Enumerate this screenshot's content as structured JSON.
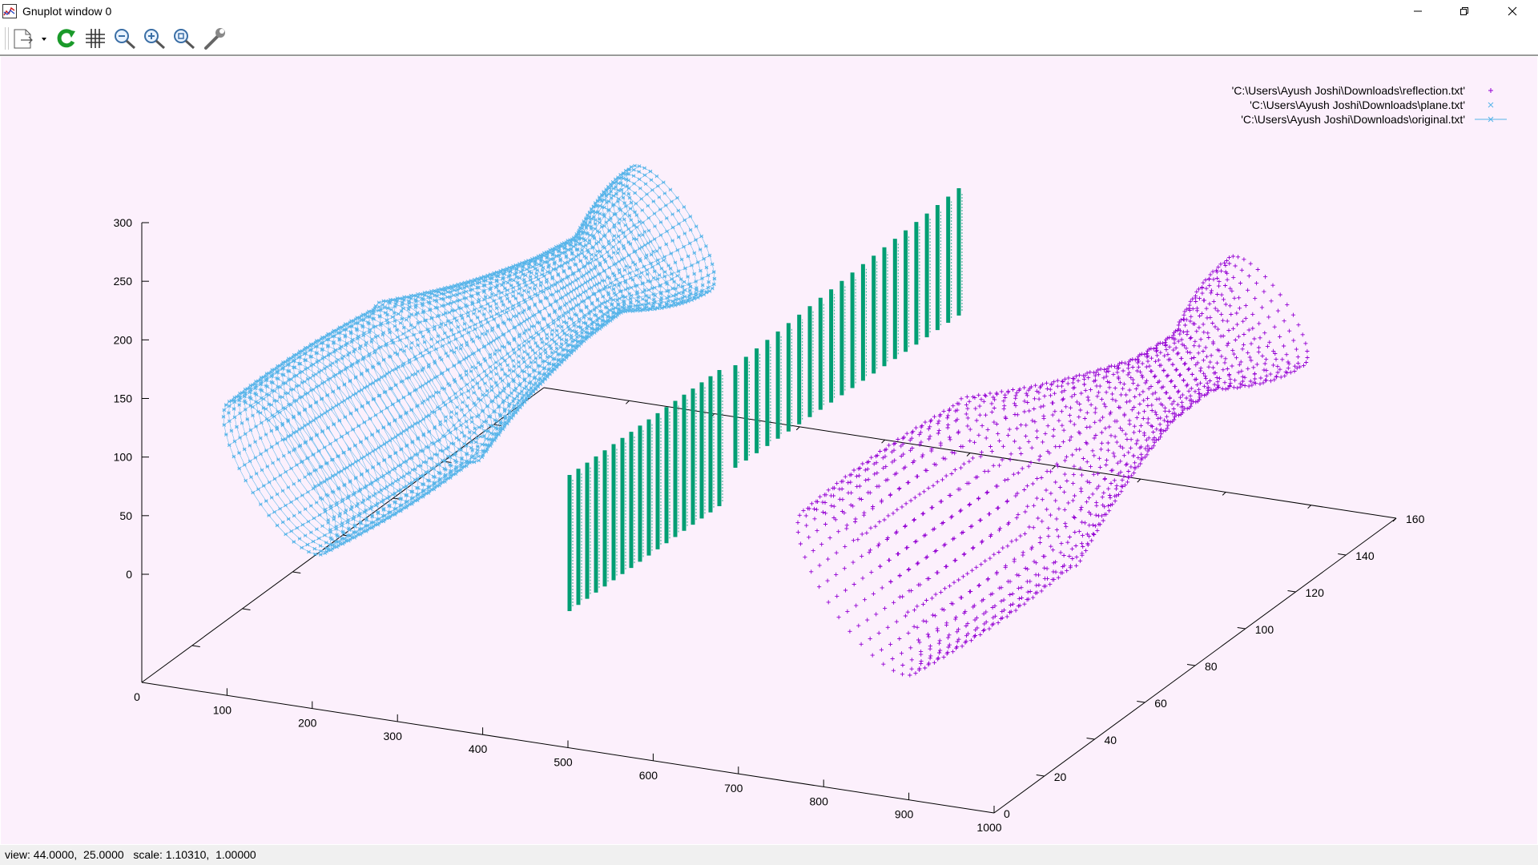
{
  "window": {
    "title": "Gnuplot window 0",
    "controls": [
      "minimize",
      "restore",
      "close"
    ]
  },
  "toolbar": {
    "buttons": [
      "export-menu",
      "replot",
      "grid",
      "zoom-previous",
      "zoom-next",
      "autoscale",
      "options"
    ]
  },
  "colors": {
    "plot_background": "#fcf0fc",
    "original": "#56b4e9",
    "plane": "#009e73",
    "reflection": "#9400d3",
    "axes": "#000000",
    "replot_icon": "#1a9a2a"
  },
  "legend": {
    "entries": [
      {
        "label": "'C:\\Users\\Ayush Joshi\\Downloads\\reflection.txt'",
        "marker": "+",
        "color": "#9400d3"
      },
      {
        "label": "'C:\\Users\\Ayush Joshi\\Downloads\\plane.txt'",
        "marker": "x",
        "color": "#56b4e9"
      },
      {
        "label": "'C:\\Users\\Ayush Joshi\\Downloads\\original.txt'",
        "marker": "line-star",
        "color": "#56b4e9"
      }
    ]
  },
  "chart_data": {
    "type": "scatter",
    "view": "3d",
    "x_ticks": [
      "0",
      "100",
      "200",
      "300",
      "400",
      "500",
      "600",
      "700",
      "800",
      "900",
      "1000"
    ],
    "y_ticks": [
      "0",
      "20",
      "40",
      "60",
      "80",
      "100",
      "120",
      "140",
      "160"
    ],
    "z_ticks": [
      "0",
      "50",
      "100",
      "150",
      "200",
      "250",
      "300"
    ],
    "xrange": [
      0,
      1000
    ],
    "yrange": [
      0,
      160
    ],
    "zrange": [
      0,
      300
    ],
    "series": [
      {
        "key": "original",
        "style": "linespoints"
      },
      {
        "key": "plane",
        "style": "points"
      },
      {
        "key": "reflection",
        "style": "points"
      }
    ]
  },
  "status": {
    "text": "view: 44.0000,  25.0000   scale: 1.10310,  1.00000"
  }
}
